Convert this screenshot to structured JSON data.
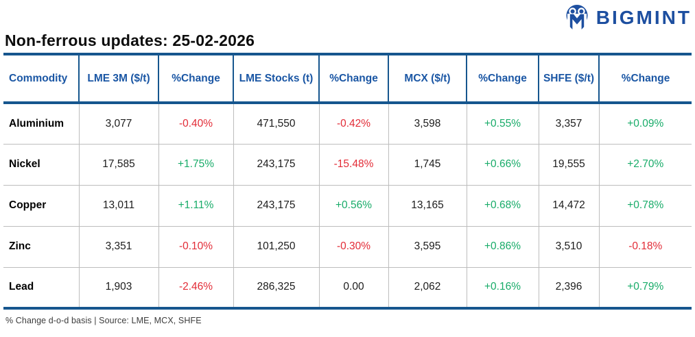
{
  "brand": {
    "name": "BIGMINT"
  },
  "page_title": "Non-ferrous updates: 25-02-2026",
  "table": {
    "columns": [
      {
        "key": "commodity",
        "label": "Commodity"
      },
      {
        "key": "lme-3m",
        "label": "LME 3M ($/t)"
      },
      {
        "key": "lme-3m-change",
        "label": "%Change"
      },
      {
        "key": "lme-stocks",
        "label": "LME Stocks (t)"
      },
      {
        "key": "lme-stocks-change",
        "label": "%Change"
      },
      {
        "key": "mcx",
        "label": "MCX ($/t)"
      },
      {
        "key": "mcx-change",
        "label": "%Change"
      },
      {
        "key": "shfe",
        "label": "SHFE ($/t)"
      },
      {
        "key": "shfe-change",
        "label": "%Change"
      }
    ],
    "rows": [
      {
        "commodity": "Aluminium",
        "values": [
          {
            "text": "3,077",
            "kind": "value"
          },
          {
            "text": "-0.40%",
            "kind": "down"
          },
          {
            "text": "471,550",
            "kind": "value"
          },
          {
            "text": "-0.42%",
            "kind": "down"
          },
          {
            "text": "3,598",
            "kind": "value"
          },
          {
            "text": "+0.55%",
            "kind": "up"
          },
          {
            "text": "3,357",
            "kind": "value"
          },
          {
            "text": "+0.09%",
            "kind": "up"
          }
        ]
      },
      {
        "commodity": "Nickel",
        "values": [
          {
            "text": "17,585",
            "kind": "value"
          },
          {
            "text": "+1.75%",
            "kind": "up"
          },
          {
            "text": "243,175",
            "kind": "value"
          },
          {
            "text": "-15.48%",
            "kind": "down"
          },
          {
            "text": "1,745",
            "kind": "value"
          },
          {
            "text": "+0.66%",
            "kind": "up"
          },
          {
            "text": "19,555",
            "kind": "value"
          },
          {
            "text": "+2.70%",
            "kind": "up"
          }
        ]
      },
      {
        "commodity": "Copper",
        "values": [
          {
            "text": "13,011",
            "kind": "value"
          },
          {
            "text": "+1.11%",
            "kind": "up"
          },
          {
            "text": "243,175",
            "kind": "value"
          },
          {
            "text": "+0.56%",
            "kind": "up"
          },
          {
            "text": "13,165",
            "kind": "value"
          },
          {
            "text": "+0.68%",
            "kind": "up"
          },
          {
            "text": "14,472",
            "kind": "value"
          },
          {
            "text": "+0.78%",
            "kind": "up"
          }
        ]
      },
      {
        "commodity": "Zinc",
        "values": [
          {
            "text": "3,351",
            "kind": "value"
          },
          {
            "text": "-0.10%",
            "kind": "down"
          },
          {
            "text": "101,250",
            "kind": "value"
          },
          {
            "text": "-0.30%",
            "kind": "down"
          },
          {
            "text": "3,595",
            "kind": "value"
          },
          {
            "text": "+0.86%",
            "kind": "up"
          },
          {
            "text": "3,510",
            "kind": "value"
          },
          {
            "text": "-0.18%",
            "kind": "down"
          }
        ]
      },
      {
        "commodity": "Lead",
        "values": [
          {
            "text": "1,903",
            "kind": "value"
          },
          {
            "text": "-2.46%",
            "kind": "down"
          },
          {
            "text": "286,325",
            "kind": "value"
          },
          {
            "text": "0.00",
            "kind": "flat"
          },
          {
            "text": "2,062",
            "kind": "value"
          },
          {
            "text": "+0.16%",
            "kind": "up"
          },
          {
            "text": "2,396",
            "kind": "value"
          },
          {
            "text": "+0.79%",
            "kind": "up"
          }
        ]
      }
    ]
  },
  "footer_note": "% Change d-o-d basis | Source: LME, MCX, SHFE",
  "colors": {
    "positive": "#17ab68",
    "negative": "#e22b36",
    "header_blue": "#1a56a4",
    "rule_blue": "#16568e",
    "logo_blue": "#1d4fa0",
    "grid_gray": "#bdbdbd"
  }
}
